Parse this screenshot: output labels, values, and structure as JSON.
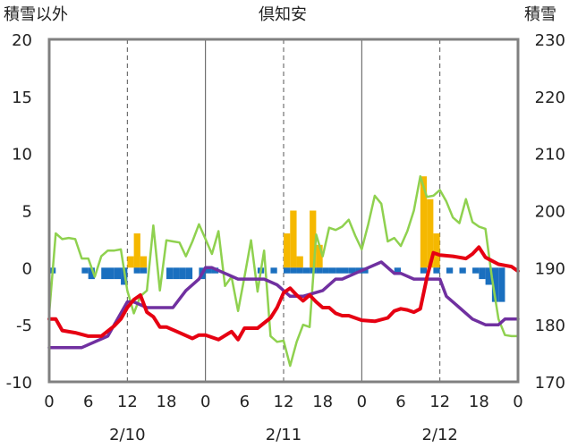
{
  "chart_data": {
    "type": "bar+line",
    "title": "倶知安",
    "left_axis_label": "積雪以外",
    "right_axis_label": "積雪",
    "ylim_left": [
      -10,
      20
    ],
    "ylim_right": [
      170,
      230
    ],
    "left_ticks": [
      "20",
      "15",
      "10",
      "5",
      "0",
      "-5",
      "-10"
    ],
    "right_ticks": [
      "230",
      "220",
      "210",
      "200",
      "190",
      "180",
      "170"
    ],
    "x_ticks": [
      "0",
      "6",
      "12",
      "18",
      "0",
      "6",
      "12",
      "18",
      "0",
      "6",
      "12",
      "18",
      "0"
    ],
    "date_labels": [
      "2/10",
      "2/11",
      "2/12"
    ],
    "grid": "dashed vertical every 12 hours; solid at day boundaries",
    "legend": "none",
    "colors": {
      "snowfall": "#f5b800",
      "snow_change": "#1a6fbf",
      "temperature": "#e60012",
      "snow_depth": "#7030a0",
      "wind": "#8fd14f",
      "axes": "#808080"
    },
    "series": [
      {
        "axis": "left",
        "kind": "bar",
        "hours": [
          13,
          14,
          15,
          37,
          38,
          39,
          41,
          42,
          58,
          59,
          60
        ],
        "values": [
          1,
          3,
          1,
          3,
          5,
          1,
          5,
          2,
          8,
          6,
          3
        ]
      },
      {
        "axis": "left",
        "kind": "bar",
        "hours": [
          1,
          6,
          7,
          9,
          10,
          11,
          12,
          14,
          15,
          19,
          20,
          21,
          22,
          24,
          25,
          26,
          33,
          35,
          37,
          38,
          39,
          40,
          41,
          42,
          43,
          44,
          45,
          46,
          47,
          48,
          49,
          54,
          58,
          60,
          62,
          64,
          66,
          67,
          68,
          69,
          70
        ],
        "values": [
          -0.5,
          -0.5,
          -1,
          -1,
          -1,
          -1,
          -1.5,
          -0.5,
          -0.5,
          -1,
          -1,
          -1,
          -1,
          -1,
          -0.5,
          -0.5,
          -0.5,
          -0.5,
          -0.5,
          -0.5,
          -0.5,
          -0.5,
          -0.5,
          -0.5,
          -0.5,
          -0.5,
          -0.5,
          -0.5,
          -0.5,
          -0.5,
          -0.5,
          -0.5,
          -0.5,
          -0.5,
          -0.5,
          -0.5,
          -0.5,
          -1,
          -1.5,
          -3,
          -3
        ]
      },
      {
        "axis": "left",
        "kind": "line",
        "hours": [
          0,
          1,
          2,
          4,
          6,
          8,
          10,
          11,
          12,
          13,
          14,
          15,
          16,
          17,
          18,
          20,
          22,
          23,
          24,
          26,
          28,
          29,
          30,
          32,
          34,
          35,
          36,
          37,
          38,
          39,
          40,
          41,
          42,
          43,
          44,
          45,
          46,
          48,
          50,
          52,
          53,
          54,
          55,
          56,
          57,
          58,
          59,
          60,
          62,
          64,
          65,
          66,
          67,
          68,
          69,
          70,
          71,
          72
        ],
        "values": [
          -4.5,
          -4.5,
          -5.5,
          -5.7,
          -6,
          -6,
          -5.1,
          -4.5,
          -3.5,
          -2.8,
          -2.4,
          -3.9,
          -4.3,
          -5.2,
          -5.2,
          -5.7,
          -6.2,
          -5.9,
          -5.9,
          -6.3,
          -5.6,
          -6.3,
          -5.3,
          -5.3,
          -4.4,
          -3.5,
          -2.2,
          -1.8,
          -2.4,
          -2.9,
          -2.4,
          -3,
          -3.5,
          -3.5,
          -4,
          -4.2,
          -4.2,
          -4.6,
          -4.7,
          -4.4,
          -3.8,
          -3.6,
          -3.7,
          -3.9,
          -3.6,
          -0.9,
          1.3,
          1.1,
          1,
          0.8,
          1.2,
          1.8,
          0.9,
          0.6,
          0.3,
          0.2,
          0.1,
          -0.3
        ]
      },
      {
        "axis": "right",
        "kind": "line",
        "hours": [
          0,
          5,
          9,
          12,
          13,
          15,
          17,
          19,
          21,
          23,
          24,
          25,
          27,
          29,
          33,
          35,
          36,
          37,
          39,
          42,
          44,
          45,
          47,
          51,
          53,
          54,
          56,
          60,
          61,
          63,
          65,
          67,
          69,
          70,
          71,
          72
        ],
        "values": [
          176,
          176,
          178,
          184,
          184,
          183,
          183,
          183,
          186,
          188,
          190,
          190,
          189,
          188,
          188,
          187,
          186,
          185,
          185,
          186,
          188,
          188,
          189,
          191,
          189,
          189,
          188,
          188,
          185,
          183,
          181,
          180,
          180,
          181,
          181,
          181
        ]
      },
      {
        "axis": "left",
        "kind": "line",
        "hours": [
          0,
          1,
          2,
          3,
          4,
          5,
          6,
          7,
          8,
          9,
          10,
          11,
          12,
          13,
          14,
          15,
          16,
          17,
          18,
          19,
          20,
          21,
          22,
          23,
          24,
          25,
          26,
          27,
          28,
          29,
          30,
          31,
          32,
          33,
          34,
          35,
          36,
          37,
          38,
          39,
          40,
          41,
          42,
          43,
          44,
          45,
          46,
          47,
          48,
          49,
          50,
          51,
          52,
          53,
          54,
          55,
          56,
          57,
          58,
          59,
          60,
          61,
          62,
          63,
          64,
          65,
          66,
          67,
          68,
          69,
          70,
          71,
          72
        ],
        "values": [
          -4,
          3,
          2.5,
          2.6,
          2.5,
          0.8,
          0.8,
          -0.8,
          1,
          1.5,
          1.5,
          1.6,
          -2,
          -4,
          -2.5,
          -2,
          3.7,
          -2,
          2.4,
          2.3,
          2.2,
          1,
          2.3,
          3.8,
          2.5,
          1.2,
          3.2,
          -1.6,
          -0.8,
          -3.8,
          -0.8,
          2.4,
          -2.1,
          1.5,
          -6,
          -6.5,
          -6.4,
          -8.6,
          -6.5,
          -5,
          -5.2,
          2.9,
          1,
          3.5,
          3.3,
          3.6,
          4.2,
          2.8,
          1.6,
          3.8,
          6.3,
          5.6,
          2.3,
          2.6,
          1.9,
          3.2,
          5,
          8,
          6.2,
          6.3,
          6.8,
          5.8,
          4.4,
          3.9,
          6,
          4,
          3.6,
          3.4,
          -0.9,
          -4.5,
          -5.9,
          -6,
          -6
        ]
      }
    ]
  }
}
